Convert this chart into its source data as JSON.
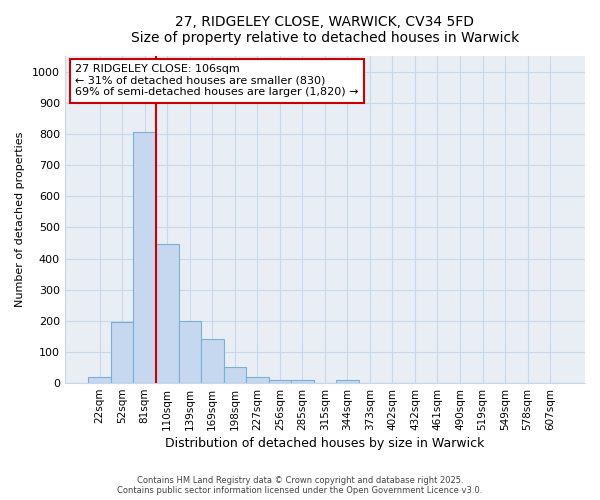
{
  "title_line1": "27, RIDGELEY CLOSE, WARWICK, CV34 5FD",
  "title_line2": "Size of property relative to detached houses in Warwick",
  "xlabel": "Distribution of detached houses by size in Warwick",
  "ylabel": "Number of detached properties",
  "categories": [
    "22sqm",
    "52sqm",
    "81sqm",
    "110sqm",
    "139sqm",
    "169sqm",
    "198sqm",
    "227sqm",
    "256sqm",
    "285sqm",
    "315sqm",
    "344sqm",
    "373sqm",
    "402sqm",
    "432sqm",
    "461sqm",
    "490sqm",
    "519sqm",
    "549sqm",
    "578sqm",
    "607sqm"
  ],
  "values": [
    20,
    195,
    805,
    445,
    200,
    140,
    50,
    20,
    10,
    10,
    0,
    10,
    0,
    0,
    0,
    0,
    0,
    0,
    0,
    0,
    0
  ],
  "bar_color": "#c5d8f0",
  "bar_edge_color": "#7bafd4",
  "grid_color": "#c8d8e8",
  "bg_color": "#e8eef4",
  "vline_color": "#cc0000",
  "annotation_text": "27 RIDGELEY CLOSE: 106sqm\n← 31% of detached houses are smaller (830)\n69% of semi-detached houses are larger (1,820) →",
  "annotation_box_edge_color": "#cc0000",
  "ylim": [
    0,
    1050
  ],
  "yticks": [
    0,
    100,
    200,
    300,
    400,
    500,
    600,
    700,
    800,
    900,
    1000
  ],
  "footer_line1": "Contains HM Land Registry data © Crown copyright and database right 2025.",
  "footer_line2": "Contains public sector information licensed under the Open Government Licence v3.0."
}
